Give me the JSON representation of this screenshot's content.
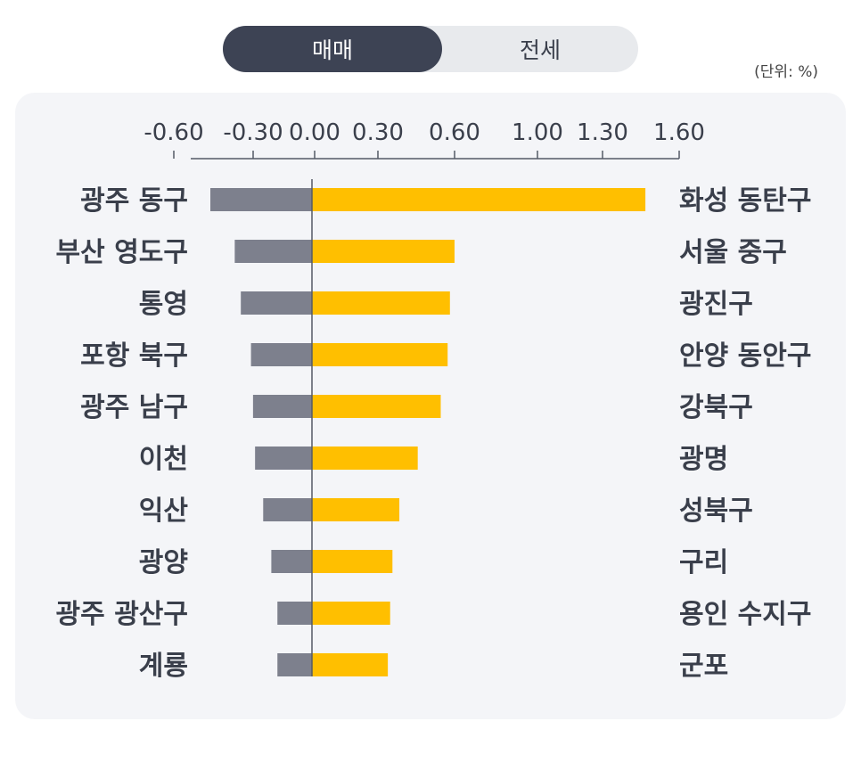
{
  "tabs": {
    "active": "매매",
    "inactive": "전세"
  },
  "unit": "(단위: %)",
  "colors": {
    "negative_bar": "#7d808d",
    "positive_bar": "#ffbf00",
    "axis": "#555a66"
  },
  "chart_data": {
    "type": "bar",
    "orientation": "horizontal-diverging",
    "axis_ticks": [
      "-0.60",
      "-0.30",
      "0.00",
      "0.30",
      "0.60",
      "1.00",
      "1.30",
      "1.60"
    ],
    "rows": [
      {
        "left_label": "광주 동구",
        "left_value": -0.5,
        "right_label": "화성 동탄구",
        "right_value": 1.45
      },
      {
        "left_label": "부산 영도구",
        "left_value": -0.38,
        "right_label": "서울 중구",
        "right_value": 0.62
      },
      {
        "left_label": "통영",
        "left_value": -0.35,
        "right_label": "광진구",
        "right_value": 0.6
      },
      {
        "left_label": "포항 북구",
        "left_value": -0.3,
        "right_label": "안양 동안구",
        "right_value": 0.59
      },
      {
        "left_label": "광주 남구",
        "left_value": -0.29,
        "right_label": "강북구",
        "right_value": 0.56
      },
      {
        "left_label": "이천",
        "left_value": -0.28,
        "right_label": "광명",
        "right_value": 0.46
      },
      {
        "left_label": "익산",
        "left_value": -0.24,
        "right_label": "성북구",
        "right_value": 0.38
      },
      {
        "left_label": "광양",
        "left_value": -0.2,
        "right_label": "구리",
        "right_value": 0.35
      },
      {
        "left_label": "광주 광산구",
        "left_value": -0.17,
        "right_label": "용인 수지구",
        "right_value": 0.34
      },
      {
        "left_label": "계룡",
        "left_value": -0.17,
        "right_label": "군포",
        "right_value": 0.33
      }
    ]
  }
}
